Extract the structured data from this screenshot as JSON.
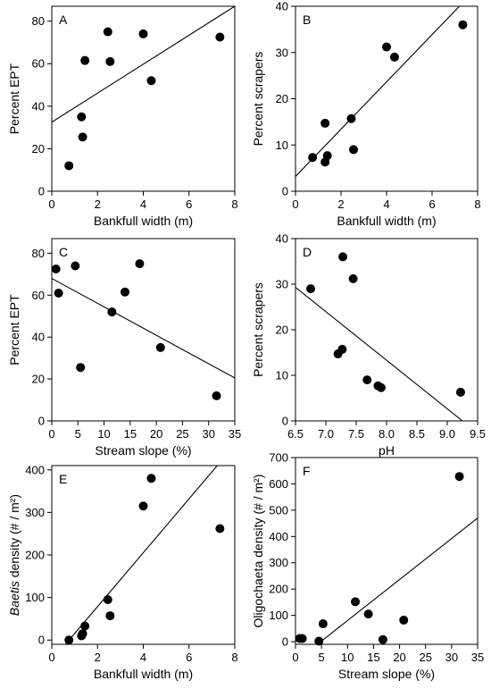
{
  "figure": {
    "panels_count": 6
  },
  "chart_data": [
    {
      "id": "A",
      "panel_label": "A",
      "type": "scatter",
      "xlabel": "Bankfull width (m)",
      "ylabel": "Percent EPT",
      "xlim": [
        0,
        8
      ],
      "ylim": [
        0,
        87
      ],
      "xticks": [
        0,
        2,
        4,
        6,
        8
      ],
      "yticks": [
        0,
        20,
        40,
        60,
        80
      ],
      "points": [
        [
          0.75,
          12
        ],
        [
          1.3,
          35
        ],
        [
          1.35,
          25.5
        ],
        [
          1.45,
          61.5
        ],
        [
          2.45,
          75
        ],
        [
          2.55,
          61
        ],
        [
          4.0,
          74
        ],
        [
          4.35,
          52
        ],
        [
          7.35,
          72.5
        ]
      ],
      "fit_line": [
        [
          0,
          32.5
        ],
        [
          8,
          87
        ]
      ]
    },
    {
      "id": "B",
      "panel_label": "B",
      "type": "scatter",
      "xlabel": "Bankfull width (m)",
      "ylabel": "Percent scrapers",
      "xlim": [
        0,
        8
      ],
      "ylim": [
        0,
        40
      ],
      "xticks": [
        0,
        2,
        4,
        6,
        8
      ],
      "yticks": [
        0,
        10,
        20,
        30,
        40
      ],
      "points": [
        [
          0.75,
          7.3
        ],
        [
          1.3,
          14.7
        ],
        [
          1.3,
          6.3
        ],
        [
          1.4,
          7.7
        ],
        [
          2.45,
          15.7
        ],
        [
          2.55,
          9
        ],
        [
          4.0,
          31.2
        ],
        [
          4.35,
          29
        ],
        [
          7.35,
          36
        ]
      ],
      "fit_line": [
        [
          0,
          3.2
        ],
        [
          7.2,
          40
        ]
      ]
    },
    {
      "id": "C",
      "panel_label": "C",
      "type": "scatter",
      "xlabel": "Stream slope (%)",
      "ylabel": "Percent EPT",
      "xlim": [
        0,
        35
      ],
      "ylim": [
        0,
        87
      ],
      "xticks": [
        0,
        5,
        10,
        15,
        20,
        25,
        30,
        35
      ],
      "yticks": [
        0,
        20,
        40,
        60,
        80
      ],
      "points": [
        [
          0.8,
          72.5
        ],
        [
          1.3,
          61
        ],
        [
          4.5,
          74
        ],
        [
          5.5,
          25.5
        ],
        [
          11.5,
          52
        ],
        [
          14,
          61.5
        ],
        [
          16.8,
          75
        ],
        [
          20.8,
          35
        ],
        [
          31.5,
          12
        ]
      ],
      "fit_line": [
        [
          0,
          68
        ],
        [
          35,
          20.5
        ]
      ]
    },
    {
      "id": "D",
      "panel_label": "D",
      "type": "scatter",
      "xlabel": "pH",
      "ylabel": "Percent scrapers",
      "xlim": [
        6.5,
        9.5
      ],
      "ylim": [
        0,
        40
      ],
      "xticks": [
        6.5,
        7.0,
        7.5,
        8.0,
        8.5,
        9.0,
        9.5
      ],
      "xtick_labels": [
        "6.5",
        "7.0",
        "7.5",
        "8.0",
        "8.5",
        "9.0",
        "9.5"
      ],
      "yticks": [
        0,
        10,
        20,
        30,
        40
      ],
      "points": [
        [
          6.75,
          29
        ],
        [
          7.2,
          14.7
        ],
        [
          7.27,
          15.7
        ],
        [
          7.28,
          36
        ],
        [
          7.45,
          31.2
        ],
        [
          7.68,
          9
        ],
        [
          7.86,
          7.7
        ],
        [
          7.91,
          7.3
        ],
        [
          9.22,
          6.3
        ]
      ],
      "fit_line": [
        [
          6.5,
          29.3
        ],
        [
          9.25,
          0
        ]
      ]
    },
    {
      "id": "E",
      "panel_label": "E",
      "type": "scatter",
      "xlabel": "Bankfull width (m)",
      "ylabel": "density (# / m²)",
      "ylabel_italic": "Baetis",
      "xlim": [
        0,
        8
      ],
      "ylim": [
        -10,
        410
      ],
      "xticks": [
        0,
        2,
        4,
        6,
        8
      ],
      "yticks": [
        0,
        100,
        200,
        300,
        400
      ],
      "points": [
        [
          0.75,
          0
        ],
        [
          1.3,
          10
        ],
        [
          1.35,
          15
        ],
        [
          1.45,
          33
        ],
        [
          2.45,
          95
        ],
        [
          2.55,
          57
        ],
        [
          4.0,
          315
        ],
        [
          4.35,
          380
        ],
        [
          7.35,
          262
        ]
      ],
      "fit_line": [
        [
          0.6,
          -10
        ],
        [
          7.55,
          430
        ]
      ]
    },
    {
      "id": "F",
      "panel_label": "F",
      "type": "scatter",
      "xlabel": "Stream slope (%)",
      "ylabel": "Oligochaeta density (# / m²)",
      "xlim": [
        0,
        35
      ],
      "ylim": [
        -10,
        700
      ],
      "xticks": [
        0,
        5,
        10,
        15,
        20,
        25,
        30,
        35
      ],
      "yticks": [
        0,
        100,
        200,
        300,
        400,
        500,
        600,
        700
      ],
      "points": [
        [
          0.8,
          12
        ],
        [
          1.3,
          12
        ],
        [
          4.5,
          2
        ],
        [
          5.3,
          68
        ],
        [
          11.5,
          152
        ],
        [
          14,
          105
        ],
        [
          16.8,
          8
        ],
        [
          20.8,
          82
        ],
        [
          31.5,
          628
        ]
      ],
      "fit_line": [
        [
          4.2,
          -10
        ],
        [
          35,
          470
        ]
      ]
    }
  ]
}
